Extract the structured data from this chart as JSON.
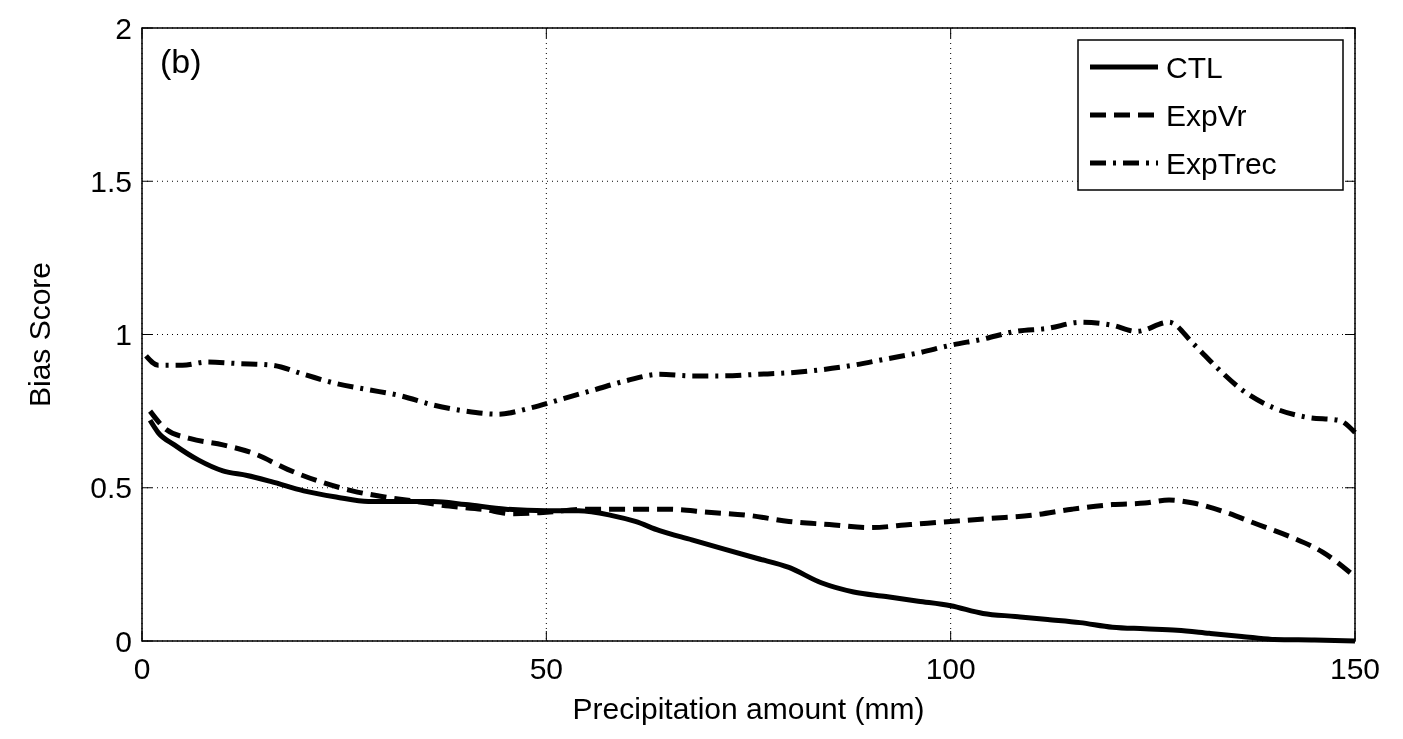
{
  "chart_data": {
    "type": "line",
    "xlabel": "Precipitation amount (mm)",
    "ylabel": "Bias Score",
    "annotations": [
      "(b)"
    ],
    "xlim": [
      0,
      150
    ],
    "xticks": [
      0,
      50,
      100,
      150
    ],
    "ylim": [
      0,
      2
    ],
    "yticks": [
      0,
      0.5,
      1,
      1.5,
      2
    ],
    "grid": true,
    "legend": "top right",
    "series": [
      {
        "name": "CTL",
        "color": "#000000",
        "line_style": "solid",
        "x": [
          1,
          2,
          4,
          7,
          10,
          13,
          16,
          20,
          24,
          28,
          32,
          36,
          40,
          45,
          50,
          54,
          58,
          61,
          64,
          68,
          72,
          76,
          80,
          84,
          88,
          92,
          96,
          100,
          104,
          108,
          112,
          116,
          120,
          124,
          128,
          132,
          136,
          140,
          145,
          150
        ],
        "values": [
          0.72,
          0.68,
          0.64,
          0.59,
          0.555,
          0.54,
          0.52,
          0.49,
          0.47,
          0.455,
          0.455,
          0.455,
          0.445,
          0.43,
          0.425,
          0.425,
          0.41,
          0.39,
          0.36,
          0.33,
          0.3,
          0.27,
          0.24,
          0.19,
          0.16,
          0.145,
          0.13,
          0.115,
          0.09,
          0.08,
          0.07,
          0.06,
          0.045,
          0.04,
          0.035,
          0.025,
          0.015,
          0.005,
          0.003,
          0
        ]
      },
      {
        "name": "ExpVr",
        "color": "#000000",
        "line_style": "dashed",
        "x": [
          1,
          3,
          6,
          10,
          14,
          18,
          22,
          26,
          30,
          34,
          38,
          42,
          46,
          50,
          55,
          60,
          65,
          70,
          75,
          80,
          85,
          90,
          95,
          100,
          105,
          110,
          115,
          120,
          124,
          127,
          130,
          134,
          138,
          142,
          146,
          150
        ],
        "values": [
          0.75,
          0.69,
          0.66,
          0.64,
          0.61,
          0.56,
          0.52,
          0.49,
          0.47,
          0.455,
          0.44,
          0.43,
          0.415,
          0.42,
          0.43,
          0.43,
          0.43,
          0.42,
          0.41,
          0.39,
          0.38,
          0.37,
          0.38,
          0.39,
          0.4,
          0.41,
          0.43,
          0.445,
          0.45,
          0.46,
          0.45,
          0.42,
          0.38,
          0.34,
          0.29,
          0.21
        ]
      },
      {
        "name": "ExpTrec",
        "color": "#000000",
        "line_style": "dashdot",
        "x": [
          0.5,
          2,
          5,
          8,
          12,
          16,
          20,
          24,
          28,
          32,
          36,
          40,
          44,
          48,
          52,
          56,
          60,
          64,
          68,
          72,
          76,
          80,
          84,
          88,
          92,
          96,
          100,
          104,
          108,
          112,
          116,
          120,
          123,
          127,
          130,
          133,
          136,
          140,
          144,
          148,
          150
        ],
        "values": [
          0.93,
          0.9,
          0.9,
          0.91,
          0.905,
          0.9,
          0.87,
          0.84,
          0.82,
          0.8,
          0.77,
          0.75,
          0.74,
          0.76,
          0.79,
          0.82,
          0.85,
          0.87,
          0.865,
          0.865,
          0.87,
          0.875,
          0.885,
          0.9,
          0.92,
          0.94,
          0.965,
          0.985,
          1.01,
          1.02,
          1.04,
          1.03,
          1.01,
          1.04,
          0.97,
          0.89,
          0.82,
          0.76,
          0.73,
          0.72,
          0.68
        ]
      }
    ]
  }
}
